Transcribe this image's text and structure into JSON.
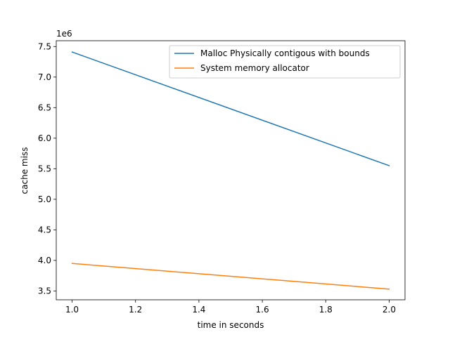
{
  "chart_data": {
    "type": "line",
    "title": "",
    "xlabel": "time in seconds",
    "ylabel": "cache miss",
    "y_offset_label": "1e6",
    "xlim": [
      0.95,
      2.05
    ],
    "ylim": [
      3.355,
      7.595
    ],
    "x_ticks": [
      1.0,
      1.2,
      1.4,
      1.6,
      1.8,
      2.0
    ],
    "x_tick_labels": [
      "1.0",
      "1.2",
      "1.4",
      "1.6",
      "1.8",
      "2.0"
    ],
    "y_ticks": [
      3.5,
      4.0,
      4.5,
      5.0,
      5.5,
      6.0,
      6.5,
      7.0,
      7.5
    ],
    "y_tick_labels": [
      "3.5",
      "4.0",
      "4.5",
      "5.0",
      "5.5",
      "6.0",
      "6.5",
      "7.0",
      "7.5"
    ],
    "grid": false,
    "legend_position": "upper-right",
    "series": [
      {
        "name": "Malloc Physically contigous with bounds",
        "color": "#1f77b4",
        "x": [
          1.0,
          2.0
        ],
        "y": [
          7.41,
          5.55
        ]
      },
      {
        "name": "System memory allocator",
        "color": "#ff7f0e",
        "x": [
          1.0,
          2.0
        ],
        "y": [
          3.95,
          3.53
        ]
      }
    ]
  }
}
